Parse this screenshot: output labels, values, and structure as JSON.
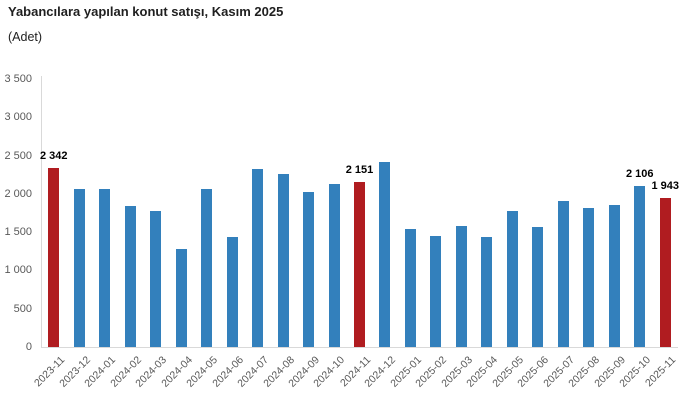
{
  "chart_data": {
    "type": "bar",
    "title": "Yabancılara yapılan konut satışı, Kasım 2025",
    "subtitle": "(Adet)",
    "categories": [
      "2023-11",
      "2023-12",
      "2024-01",
      "2024-02",
      "2024-03",
      "2024-04",
      "2024-05",
      "2024-06",
      "2024-07",
      "2024-08",
      "2024-09",
      "2024-10",
      "2024-11",
      "2024-12",
      "2025-01",
      "2025-02",
      "2025-03",
      "2025-04",
      "2025-05",
      "2025-06",
      "2025-07",
      "2025-08",
      "2025-09",
      "2025-10",
      "2025-11"
    ],
    "values": [
      2342,
      2065,
      2065,
      1845,
      1780,
      1275,
      2065,
      1435,
      2330,
      2260,
      2025,
      2130,
      2151,
      2415,
      1545,
      1450,
      1575,
      1440,
      1775,
      1565,
      1910,
      1810,
      1860,
      2106,
      1943
    ],
    "highlight_categories": [
      "2023-11",
      "2024-11",
      "2025-11"
    ],
    "data_labels": {
      "2023-11": "2 342",
      "2024-11": "2 151",
      "2025-10": "2 106",
      "2025-11": "1 943"
    },
    "ylim": [
      0,
      3500
    ],
    "ytick_step": 500,
    "ytick_labels": [
      "0",
      "500",
      "1 000",
      "1 500",
      "2 000",
      "2 500",
      "3 000",
      "3 500"
    ],
    "xlabel": "",
    "ylabel": "",
    "grid": false,
    "legend": false,
    "colors": {
      "bar": "#3380BC",
      "highlight": "#B01C20",
      "axis_line": "#D9D9D9",
      "tick_label": "#595959",
      "title": "#1F1F1F",
      "data_label": "#000000"
    }
  }
}
